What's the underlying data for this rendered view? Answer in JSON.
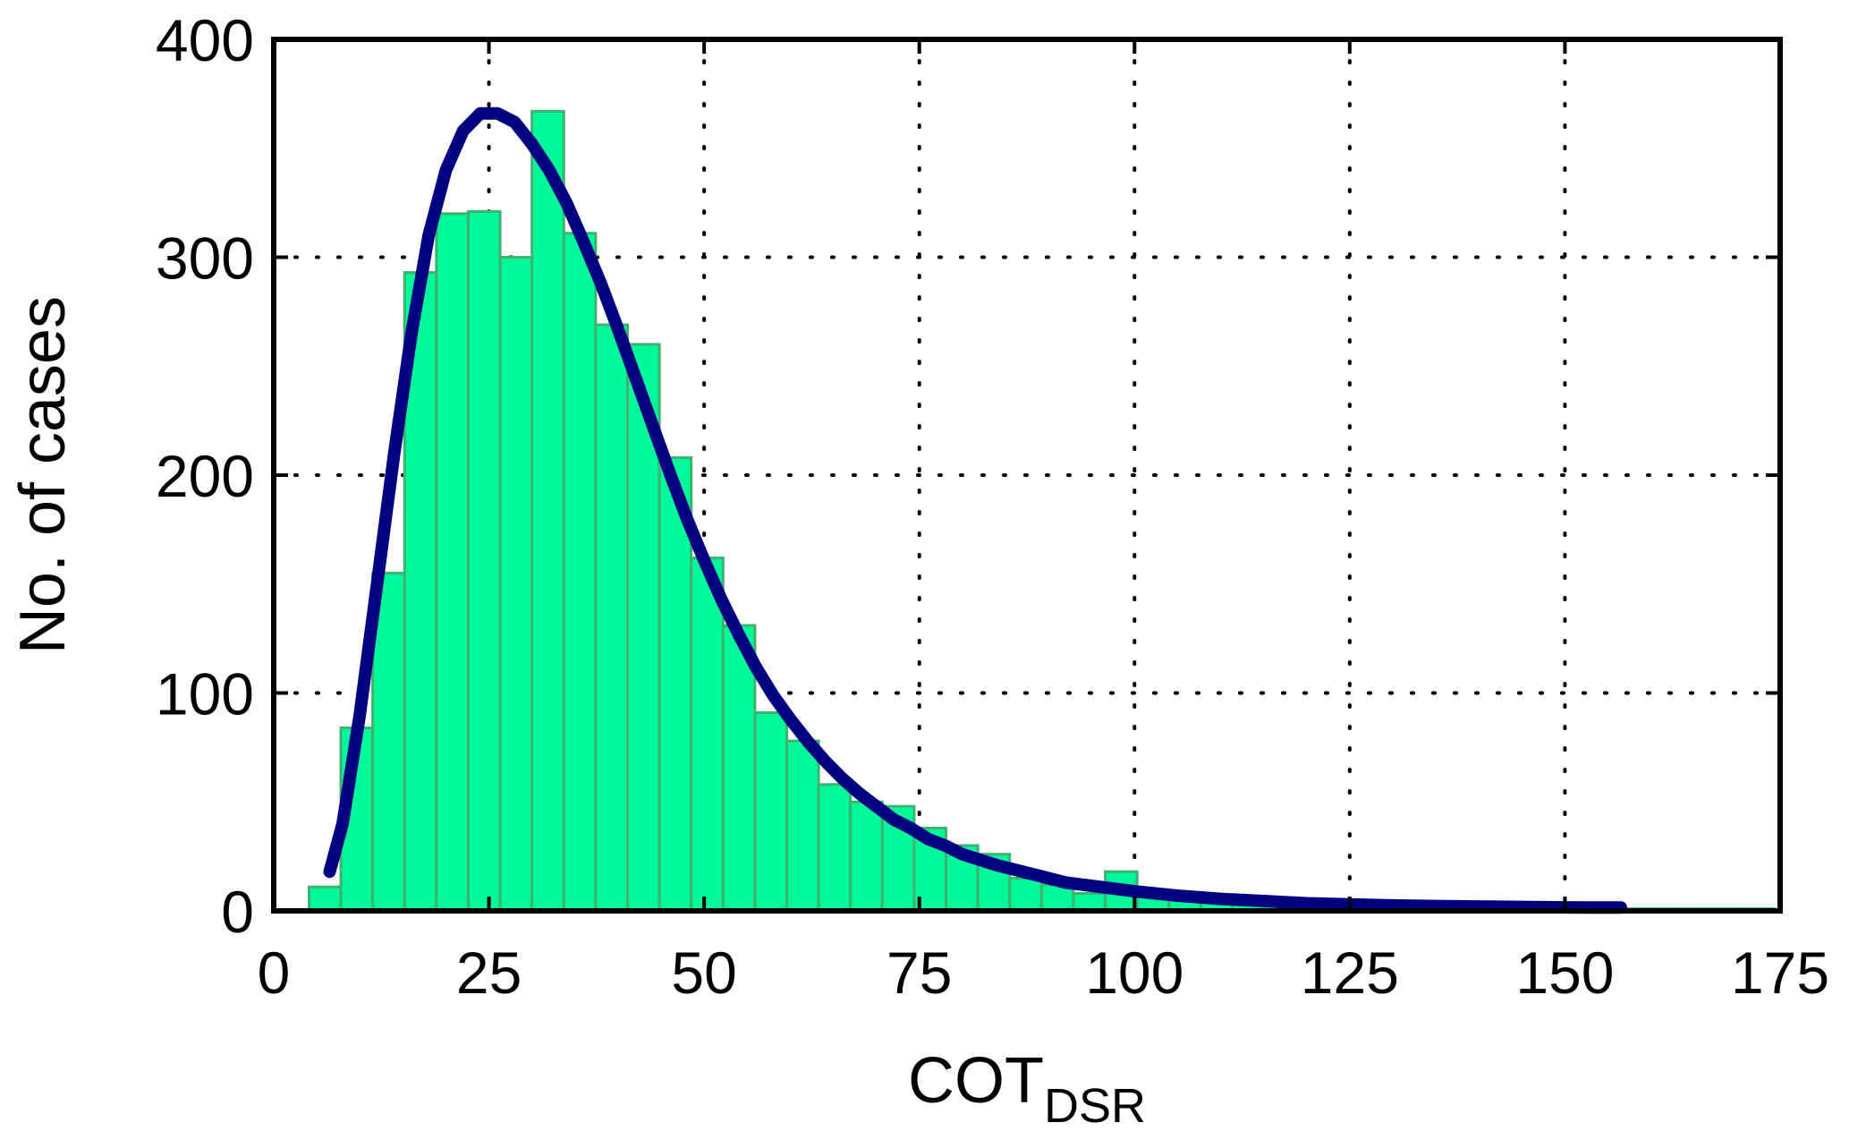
{
  "chart_data": {
    "type": "bar",
    "title": "",
    "xlabel": "COT",
    "xlabel_subscript": "DSR",
    "ylabel": "No. of cases",
    "xlim": [
      0,
      175
    ],
    "ylim": [
      0,
      400
    ],
    "x_ticks": [
      0,
      25,
      50,
      75,
      100,
      125,
      150,
      175
    ],
    "y_ticks": [
      0,
      100,
      200,
      300,
      400
    ],
    "grid": "dotted",
    "bin_width": 3.7,
    "bin_starts": [
      4.1,
      7.8,
      11.5,
      15.2,
      18.9,
      22.6,
      26.3,
      30.0,
      33.7,
      37.4,
      41.1,
      44.8,
      48.5,
      52.2,
      55.9,
      59.6,
      63.3,
      67.0,
      70.7,
      74.4,
      78.1,
      81.8,
      85.5,
      89.2,
      92.9,
      96.6,
      100.3,
      104.0,
      107.7,
      111.4,
      115.1,
      118.8,
      122.5,
      126.2,
      129.9,
      133.6,
      137.3,
      141.0,
      144.7,
      148.4,
      152.1,
      155.8,
      159.5,
      163.2,
      166.9,
      170.6
    ],
    "counts": [
      11,
      84,
      155,
      293,
      320,
      321,
      300,
      367,
      311,
      269,
      260,
      208,
      162,
      131,
      91,
      78,
      58,
      50,
      48,
      38,
      30,
      26,
      15,
      12,
      8,
      18,
      7,
      6,
      5,
      4,
      4,
      3,
      3,
      2,
      2,
      2,
      1,
      1,
      1,
      1,
      1,
      1,
      1,
      1,
      1,
      1
    ],
    "fit_curve": {
      "x": [
        6.5,
        8,
        10,
        12,
        14,
        16,
        18,
        20,
        22,
        24,
        26,
        28,
        30,
        32,
        34,
        36,
        38,
        40,
        42,
        44,
        46,
        48,
        50,
        52,
        54,
        56,
        58,
        60,
        62,
        64,
        66,
        68,
        70,
        72,
        74,
        76,
        78,
        80,
        84,
        88,
        92,
        96,
        100,
        105,
        110,
        115,
        120,
        125,
        130,
        135,
        140,
        145,
        150,
        156.5
      ],
      "y": [
        18,
        40,
        90,
        150,
        210,
        265,
        310,
        340,
        358,
        366,
        366,
        362,
        352,
        340,
        325,
        307,
        288,
        267,
        245,
        223,
        201,
        180,
        161,
        143,
        127,
        112,
        99,
        88,
        78,
        69,
        61,
        54,
        48,
        42,
        38,
        33,
        30,
        26,
        21,
        17,
        13,
        11,
        9,
        7,
        5.5,
        4.5,
        3.5,
        3,
        2.5,
        2.2,
        2,
        1.8,
        1.6,
        1.5
      ]
    },
    "colors": {
      "bar_fill": "#00fa9a",
      "bar_edge": "#3cb371",
      "curve": "#000080"
    },
    "x_tick_labels": [
      "0",
      "25",
      "50",
      "75",
      "100",
      "125",
      "150",
      "175"
    ],
    "y_tick_labels": [
      "0",
      "100",
      "200",
      "300",
      "400"
    ]
  }
}
